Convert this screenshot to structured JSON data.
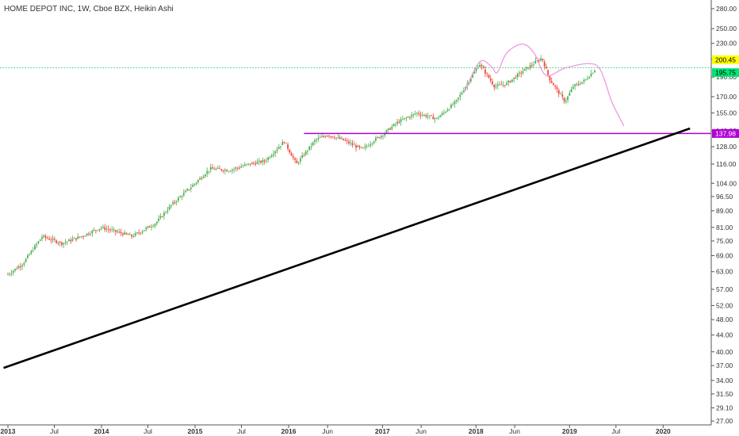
{
  "chart_data": {
    "type": "candlestick",
    "title": "HOME DEPOT INC, 1W, Cboe BZX, Heikin Ashi",
    "scale": "log",
    "grid": false,
    "colors": {
      "up": "#4caf50",
      "down": "#f44336",
      "resistance_line": "#b100d8",
      "trend_line": "#000000",
      "pattern_sketch": "#ee99e0",
      "last_price_tag": "#ffff00",
      "secondary_tag": "#00e676",
      "level_tag": "#b100d8",
      "last_price_line": "#00c853"
    },
    "y_ticks": [
      "280.00",
      "250.00",
      "230.00",
      "210.00",
      "190.00",
      "170.00",
      "155.00",
      "140.00",
      "128.00",
      "116.00",
      "104.00",
      "96.50",
      "89.00",
      "81.00",
      "75.00",
      "69.00",
      "63.00",
      "57.00",
      "52.00",
      "48.00",
      "44.00",
      "40.00",
      "37.00",
      "34.00",
      "31.50",
      "29.10",
      "27.00"
    ],
    "x_ticks": [
      "2013",
      "Jul",
      "2014",
      "Jul",
      "2015",
      "Jul",
      "2016",
      "Jun",
      "2017",
      "Jun",
      "2018",
      "Jun",
      "2019",
      "Jul",
      "2020"
    ],
    "price_tags": {
      "last_price": "200.45",
      "secondary": "195.75",
      "level": "137.98"
    },
    "price_path": [
      [
        "2013-01-01",
        62
      ],
      [
        "2013-03-01",
        66
      ],
      [
        "2013-05-15",
        77
      ],
      [
        "2013-08-01",
        74
      ],
      [
        "2013-10-15",
        77
      ],
      [
        "2014-01-01",
        81
      ],
      [
        "2014-03-01",
        79
      ],
      [
        "2014-05-01",
        77
      ],
      [
        "2014-08-01",
        83
      ],
      [
        "2014-10-01",
        92
      ],
      [
        "2015-01-01",
        104
      ],
      [
        "2015-03-01",
        113
      ],
      [
        "2015-05-15",
        112
      ],
      [
        "2015-08-01",
        116
      ],
      [
        "2015-10-01",
        118
      ],
      [
        "2015-12-15",
        132
      ],
      [
        "2016-02-01",
        116
      ],
      [
        "2016-04-15",
        133
      ],
      [
        "2016-06-01",
        137
      ],
      [
        "2016-08-01",
        133
      ],
      [
        "2016-10-15",
        126
      ],
      [
        "2016-12-01",
        133
      ],
      [
        "2017-01-01",
        137
      ],
      [
        "2017-03-01",
        147
      ],
      [
        "2017-05-15",
        155
      ],
      [
        "2017-08-01",
        150
      ],
      [
        "2017-10-15",
        165
      ],
      [
        "2018-01-15",
        205
      ],
      [
        "2018-03-15",
        180
      ],
      [
        "2018-05-01",
        183
      ],
      [
        "2018-07-01",
        196
      ],
      [
        "2018-09-15",
        212
      ],
      [
        "2018-10-15",
        188
      ],
      [
        "2018-12-15",
        165
      ],
      [
        "2019-01-15",
        180
      ],
      [
        "2019-03-01",
        186
      ],
      [
        "2019-04-15",
        200
      ]
    ],
    "overlays": {
      "resistance_level": 137.98,
      "uptrend_line": [
        [
          "2012-12-15",
          36.5
        ],
        [
          "2020-04-15",
          142
        ]
      ],
      "head_and_shoulders_sketch": [
        [
          "2017-11-15",
          174
        ],
        [
          "2018-01-15",
          207
        ],
        [
          "2018-03-01",
          202
        ],
        [
          "2018-03-25",
          195
        ],
        [
          "2018-05-01",
          218
        ],
        [
          "2018-07-01",
          229
        ],
        [
          "2018-08-15",
          218
        ],
        [
          "2018-10-01",
          192
        ],
        [
          "2018-12-15",
          200
        ],
        [
          "2019-03-15",
          205
        ],
        [
          "2019-05-01",
          198
        ],
        [
          "2019-06-15",
          165
        ],
        [
          "2019-08-01",
          144
        ]
      ]
    }
  }
}
